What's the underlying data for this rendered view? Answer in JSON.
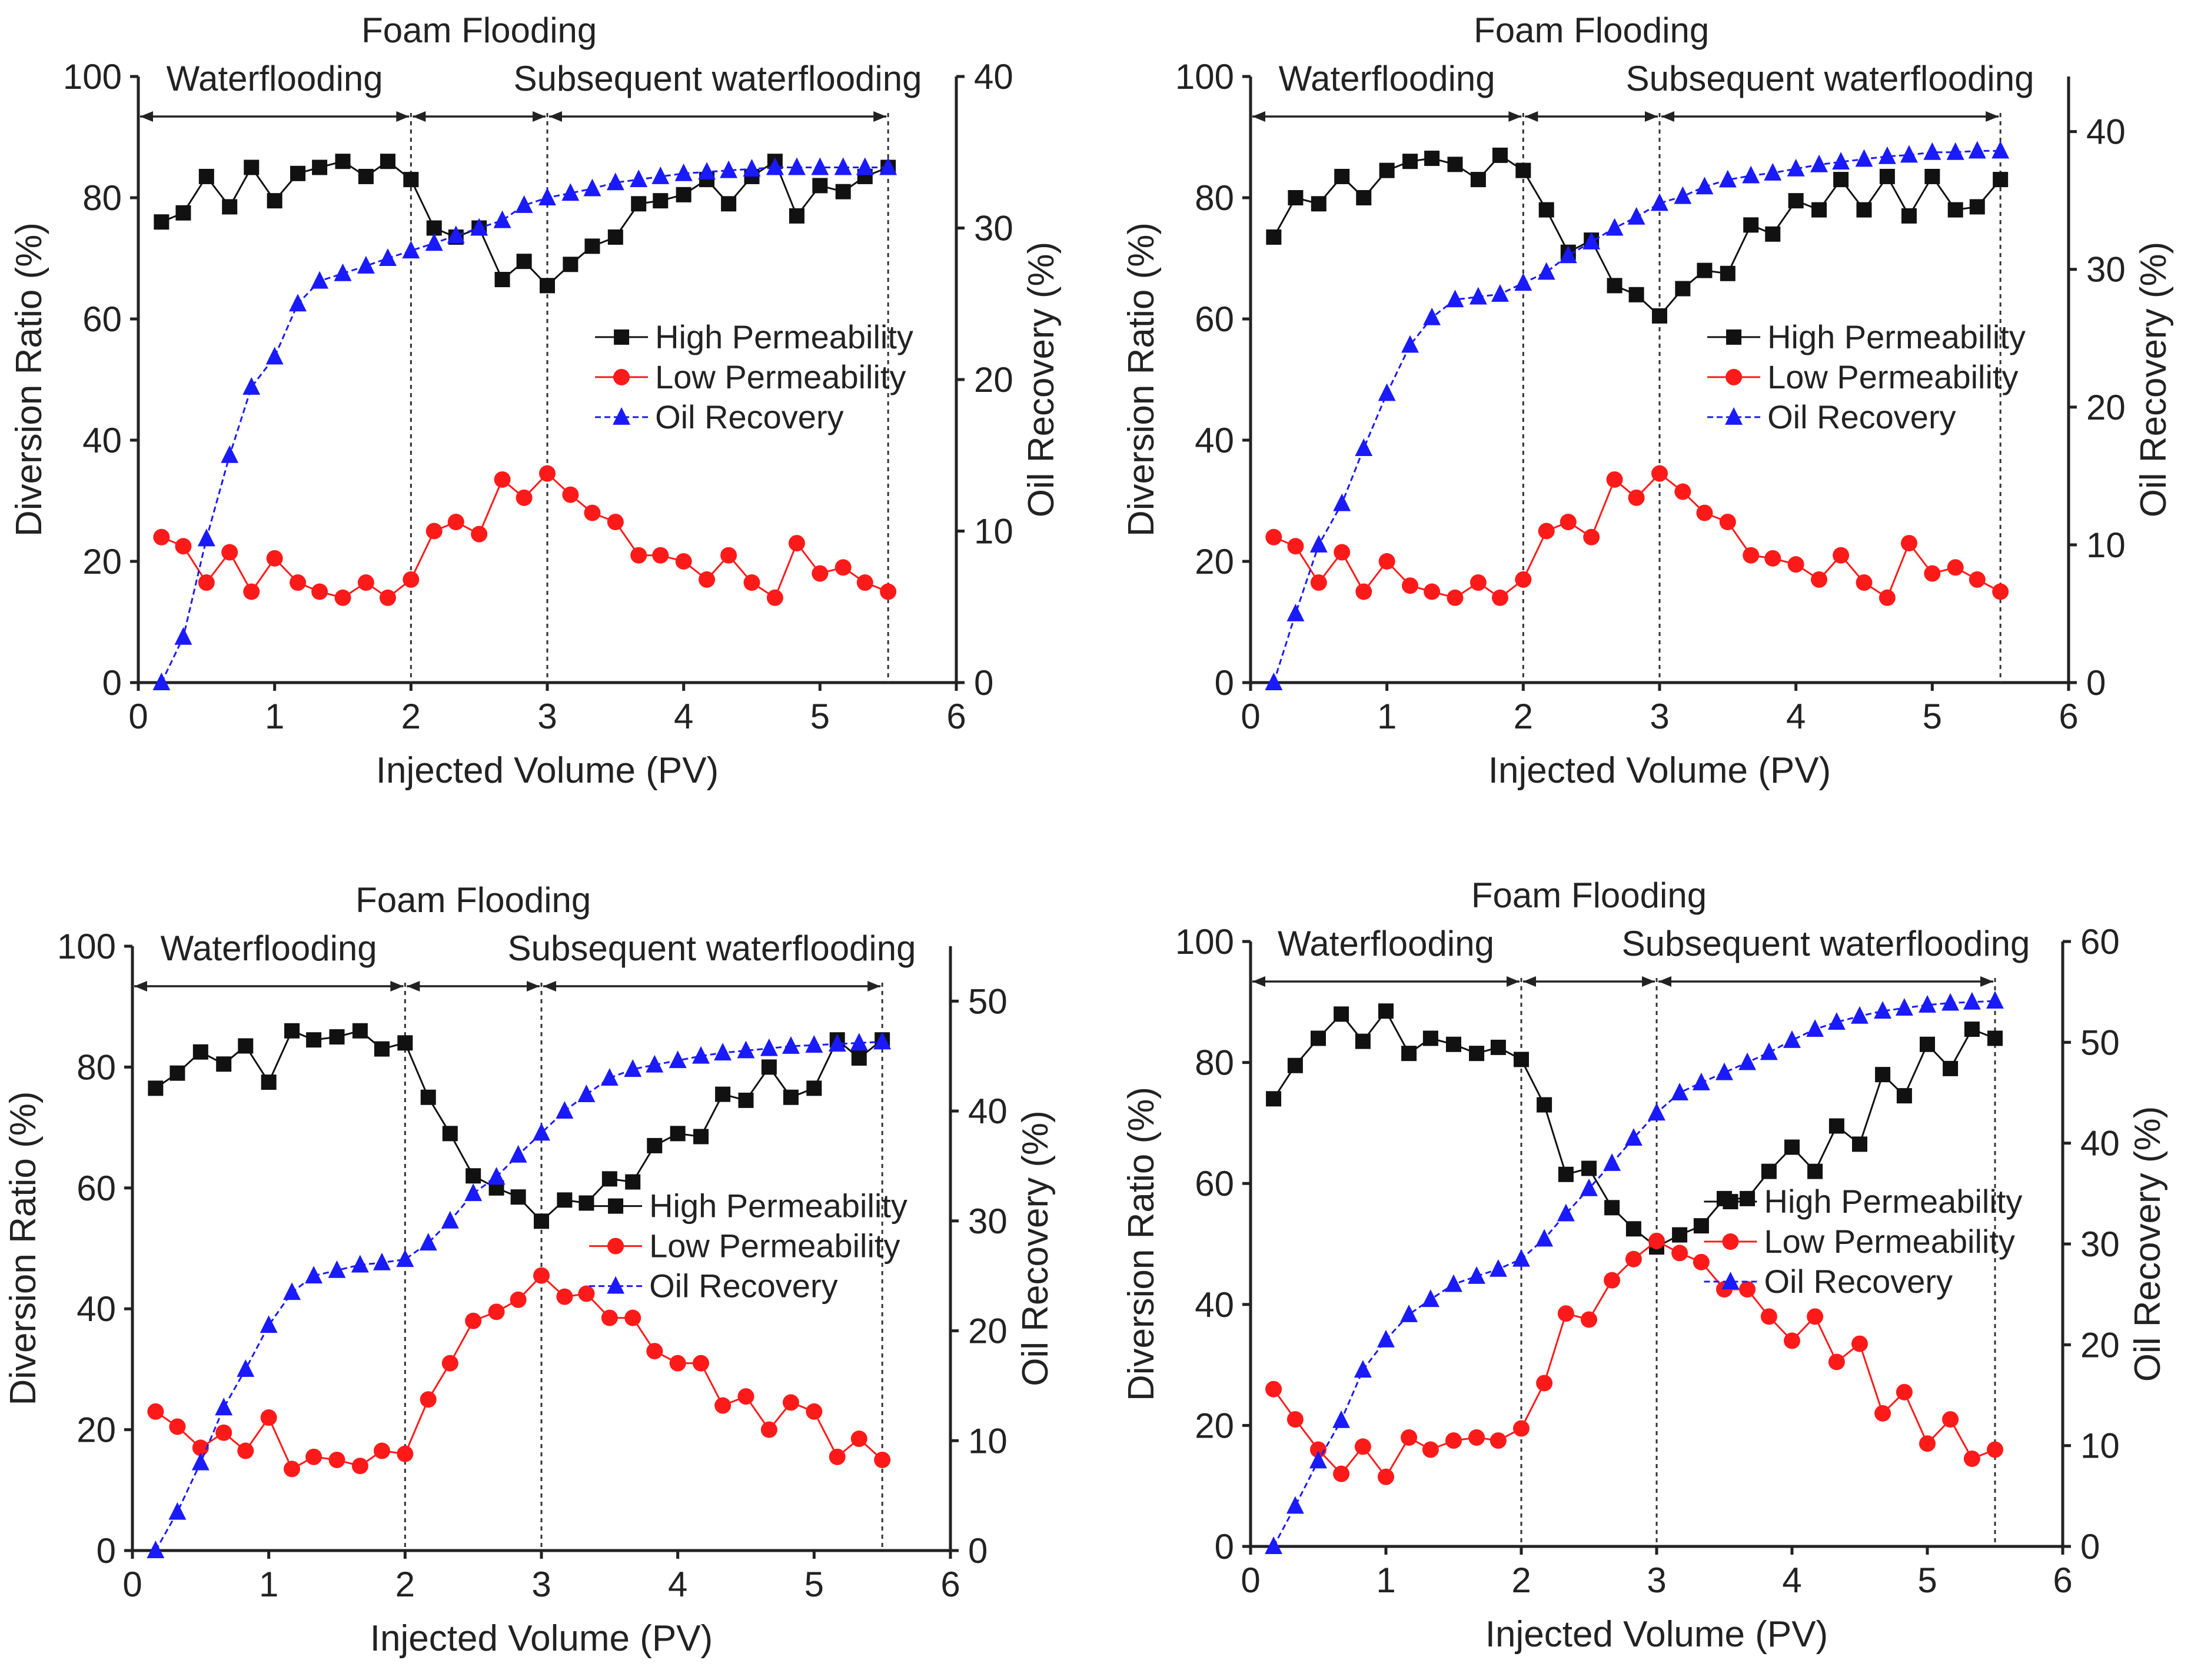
{
  "colors": {
    "high": "#111111",
    "low": "#ff1a1a",
    "oil": "#1a1aff",
    "axis": "#222222"
  },
  "markers": {
    "high": "square",
    "low": "circle",
    "oil": "triangle"
  },
  "chart_data": [
    {
      "type": "line",
      "panel": "top-left",
      "labels": {
        "phase_center": "Foam Flooding",
        "phase_left": "Waterflooding",
        "phase_right": "Subsequent waterflooding",
        "xlabel": "Injected Volume (PV)",
        "ylabel_left": "Diversion Ratio (%)",
        "ylabel_right": "Oil Recovery (%)"
      },
      "xlim": [
        0,
        6
      ],
      "xticks": [
        0,
        1,
        2,
        3,
        4,
        5,
        6
      ],
      "ylim_left": [
        0,
        100
      ],
      "yticks_left": [
        0,
        20,
        40,
        60,
        80,
        100
      ],
      "ylim_right": [
        0,
        40
      ],
      "yticks_right": [
        0,
        10,
        20,
        30,
        40
      ],
      "phase_boundaries": [
        2,
        3,
        5.5
      ],
      "legend": [
        "High Permeability",
        "Low Permeability",
        "Oil Recovery"
      ],
      "legend_position": "center-right",
      "series": [
        {
          "name": "High Permeability",
          "axis": "left",
          "x": [
            0.17,
            0.33,
            0.5,
            0.67,
            0.83,
            1.0,
            1.17,
            1.33,
            1.5,
            1.67,
            1.83,
            2.0,
            2.17,
            2.33,
            2.5,
            2.67,
            2.83,
            3.0,
            3.17,
            3.33,
            3.5,
            3.67,
            3.83,
            4.0,
            4.17,
            4.33,
            4.5,
            4.67,
            4.83,
            5.0,
            5.17,
            5.33,
            5.5
          ],
          "y": [
            76,
            77.5,
            83.5,
            78.5,
            85,
            79.5,
            84,
            85,
            86,
            83.5,
            86,
            83,
            75,
            73.5,
            75,
            66.5,
            69.5,
            65.5,
            69,
            72,
            73.5,
            79,
            79.5,
            80.5,
            83,
            79,
            83.5,
            86,
            77,
            82,
            81,
            83.5,
            85
          ]
        },
        {
          "name": "Low Permeability",
          "axis": "left",
          "x": [
            0.17,
            0.33,
            0.5,
            0.67,
            0.83,
            1.0,
            1.17,
            1.33,
            1.5,
            1.67,
            1.83,
            2.0,
            2.17,
            2.33,
            2.5,
            2.67,
            2.83,
            3.0,
            3.17,
            3.33,
            3.5,
            3.67,
            3.83,
            4.0,
            4.17,
            4.33,
            4.5,
            4.67,
            4.83,
            5.0,
            5.17,
            5.33,
            5.5
          ],
          "y": [
            24,
            22.5,
            16.5,
            21.5,
            15,
            20.5,
            16.5,
            15,
            14,
            16.5,
            14,
            17,
            25,
            26.5,
            24.5,
            33.5,
            30.5,
            34.5,
            31,
            28,
            26.5,
            21,
            21,
            20,
            17,
            21,
            16.5,
            14,
            23,
            18,
            19,
            16.5,
            15
          ]
        },
        {
          "name": "Oil Recovery",
          "axis": "right",
          "x": [
            0.17,
            0.33,
            0.5,
            0.67,
            0.83,
            1.0,
            1.17,
            1.33,
            1.5,
            1.67,
            1.83,
            2.0,
            2.17,
            2.33,
            2.5,
            2.67,
            2.83,
            3.0,
            3.17,
            3.33,
            3.5,
            3.67,
            3.83,
            4.0,
            4.17,
            4.33,
            4.5,
            4.67,
            4.83,
            5.0,
            5.17,
            5.33,
            5.5
          ],
          "y": [
            0,
            3,
            9.5,
            15,
            19.5,
            21.5,
            25,
            26.5,
            27,
            27.5,
            28,
            28.5,
            29,
            29.5,
            30,
            30.5,
            31.5,
            32,
            32.3,
            32.6,
            33,
            33.2,
            33.4,
            33.6,
            33.7,
            33.8,
            33.9,
            34,
            34,
            34,
            34,
            34,
            34
          ]
        }
      ]
    },
    {
      "type": "line",
      "panel": "top-right",
      "labels": {
        "phase_center": "Foam Flooding",
        "phase_left": "Waterflooding",
        "phase_right": "Subsequent waterflooding",
        "xlabel": "Injected Volume (PV)",
        "ylabel_left": "Diversion Ratio (%)",
        "ylabel_right": "Oil Recovery (%)"
      },
      "xlim": [
        0,
        6
      ],
      "xticks": [
        0,
        1,
        2,
        3,
        4,
        5,
        6
      ],
      "ylim_left": [
        0,
        100
      ],
      "yticks_left": [
        0,
        20,
        40,
        60,
        80,
        100
      ],
      "ylim_right": [
        0,
        44
      ],
      "yticks_right": [
        0,
        10,
        20,
        30,
        40
      ],
      "phase_boundaries": [
        2,
        3,
        5.5
      ],
      "legend": [
        "High Permeability",
        "Low Permeability",
        "Oil Recovery"
      ],
      "legend_position": "center-right",
      "series": [
        {
          "name": "High Permeability",
          "axis": "left",
          "x": [
            0.17,
            0.33,
            0.5,
            0.67,
            0.83,
            1.0,
            1.17,
            1.33,
            1.5,
            1.67,
            1.83,
            2.0,
            2.17,
            2.33,
            2.5,
            2.67,
            2.83,
            3.0,
            3.17,
            3.33,
            3.5,
            3.67,
            3.83,
            4.0,
            4.17,
            4.33,
            4.5,
            4.67,
            4.83,
            5.0,
            5.17,
            5.33,
            5.5
          ],
          "y": [
            73.5,
            80,
            79,
            83.5,
            80,
            84.5,
            86,
            86.5,
            85.5,
            83,
            87,
            84.5,
            78,
            71,
            73,
            65.5,
            64,
            60.5,
            65,
            68,
            67.5,
            75.5,
            74,
            79.5,
            78,
            83,
            78,
            83.5,
            77,
            83.5,
            78,
            78.5,
            83
          ]
        },
        {
          "name": "Low Permeability",
          "axis": "left",
          "x": [
            0.17,
            0.33,
            0.5,
            0.67,
            0.83,
            1.0,
            1.17,
            1.33,
            1.5,
            1.67,
            1.83,
            2.0,
            2.17,
            2.33,
            2.5,
            2.67,
            2.83,
            3.0,
            3.17,
            3.33,
            3.5,
            3.67,
            3.83,
            4.0,
            4.17,
            4.33,
            4.5,
            4.67,
            4.83,
            5.0,
            5.17,
            5.33,
            5.5
          ],
          "y": [
            24,
            22.5,
            16.5,
            21.5,
            15,
            20,
            16,
            15,
            14,
            16.5,
            14,
            17,
            25,
            26.5,
            24,
            33.5,
            30.5,
            34.5,
            31.5,
            28,
            26.5,
            21,
            20.5,
            19.5,
            17,
            21,
            16.5,
            14,
            23,
            18,
            19,
            17,
            15
          ]
        },
        {
          "name": "Oil Recovery",
          "axis": "right",
          "x": [
            0.17,
            0.33,
            0.5,
            0.67,
            0.83,
            1.0,
            1.17,
            1.33,
            1.5,
            1.67,
            1.83,
            2.0,
            2.17,
            2.33,
            2.5,
            2.67,
            2.83,
            3.0,
            3.17,
            3.33,
            3.5,
            3.67,
            3.83,
            4.0,
            4.17,
            4.33,
            4.5,
            4.67,
            4.83,
            5.0,
            5.17,
            5.33,
            5.5
          ],
          "y": [
            0,
            5,
            10,
            13,
            17,
            21,
            24.5,
            26.5,
            27.8,
            28,
            28.2,
            29,
            29.8,
            31,
            32,
            33,
            33.8,
            34.8,
            35.3,
            36,
            36.5,
            36.8,
            37,
            37.3,
            37.6,
            37.8,
            38,
            38.2,
            38.3,
            38.5,
            38.5,
            38.6,
            38.6
          ]
        }
      ]
    },
    {
      "type": "line",
      "panel": "bottom-left",
      "labels": {
        "phase_center": "Foam Flooding",
        "phase_left": "Waterflooding",
        "phase_right": "Subsequent waterflooding",
        "xlabel": "Injected Volume (PV)",
        "ylabel_left": "Diversion Ratio (%)",
        "ylabel_right": "Oil Recovery (%)"
      },
      "xlim": [
        0,
        6
      ],
      "xticks": [
        0,
        1,
        2,
        3,
        4,
        5,
        6
      ],
      "ylim_left": [
        0,
        100
      ],
      "yticks_left": [
        0,
        20,
        40,
        60,
        80,
        100
      ],
      "ylim_right": [
        0,
        55
      ],
      "yticks_right": [
        0,
        10,
        20,
        30,
        40,
        50
      ],
      "phase_boundaries": [
        2,
        3,
        5.5
      ],
      "legend": [
        "High Permeability",
        "Low Permeability",
        "Oil Recovery"
      ],
      "legend_position": "center-right",
      "series": [
        {
          "name": "High Permeability",
          "axis": "left",
          "x": [
            0.17,
            0.33,
            0.5,
            0.67,
            0.83,
            1.0,
            1.17,
            1.33,
            1.5,
            1.67,
            1.83,
            2.0,
            2.17,
            2.33,
            2.5,
            2.67,
            2.83,
            3.0,
            3.17,
            3.33,
            3.5,
            3.67,
            3.83,
            4.0,
            4.17,
            4.33,
            4.5,
            4.67,
            4.83,
            5.0,
            5.17,
            5.33,
            5.5
          ],
          "y": [
            76.5,
            79,
            82.5,
            80.5,
            83.5,
            77.5,
            86,
            84.5,
            85,
            86,
            83,
            84,
            75,
            69,
            62,
            60,
            58.5,
            54.5,
            58,
            57.5,
            61.5,
            61,
            67,
            69,
            68.5,
            75.5,
            74.5,
            80,
            75,
            76.5,
            84.5,
            81.5,
            84.5
          ]
        },
        {
          "name": "Low Permeability",
          "axis": "left",
          "x": [
            0.17,
            0.33,
            0.5,
            0.67,
            0.83,
            1.0,
            1.17,
            1.33,
            1.5,
            1.67,
            1.83,
            2.0,
            2.17,
            2.33,
            2.5,
            2.67,
            2.83,
            3.0,
            3.17,
            3.33,
            3.5,
            3.67,
            3.83,
            4.0,
            4.17,
            4.33,
            4.5,
            4.67,
            4.83,
            5.0,
            5.17,
            5.33,
            5.5
          ],
          "y": [
            23,
            20.5,
            17,
            19.5,
            16.5,
            22,
            13.5,
            15.5,
            15,
            14,
            16.5,
            16,
            25,
            31,
            38,
            39.5,
            41.5,
            45.5,
            42,
            42.5,
            38.5,
            38.5,
            33,
            31,
            31,
            24,
            25.5,
            20,
            24.5,
            23,
            15.5,
            18.5,
            15
          ]
        },
        {
          "name": "Oil Recovery",
          "axis": "right",
          "x": [
            0.17,
            0.33,
            0.5,
            0.67,
            0.83,
            1.0,
            1.17,
            1.33,
            1.5,
            1.67,
            1.83,
            2.0,
            2.17,
            2.33,
            2.5,
            2.67,
            2.83,
            3.0,
            3.17,
            3.33,
            3.5,
            3.67,
            3.83,
            4.0,
            4.17,
            4.33,
            4.5,
            4.67,
            4.83,
            5.0,
            5.17,
            5.33,
            5.5
          ],
          "y": [
            0,
            3.5,
            8,
            13,
            16.5,
            20.5,
            23.5,
            25,
            25.5,
            26,
            26.2,
            26.5,
            28,
            30,
            32.5,
            34,
            36,
            38,
            40,
            41.5,
            43,
            43.8,
            44.2,
            44.6,
            45,
            45.3,
            45.5,
            45.7,
            45.9,
            46,
            46.1,
            46.2,
            46.3
          ]
        }
      ]
    },
    {
      "type": "line",
      "panel": "bottom-right",
      "labels": {
        "phase_center": "Foam Flooding",
        "phase_left": "Waterflooding",
        "phase_right": "Subsequent waterflooding",
        "xlabel": "Injected Volume (PV)",
        "ylabel_left": "Diversion Ratio (%)",
        "ylabel_right": "Oil Recovery (%)"
      },
      "xlim": [
        0,
        6
      ],
      "xticks": [
        0,
        1,
        2,
        3,
        4,
        5,
        6
      ],
      "ylim_left": [
        0,
        100
      ],
      "yticks_left": [
        0,
        20,
        40,
        60,
        80,
        100
      ],
      "ylim_right": [
        0,
        60
      ],
      "yticks_right": [
        0,
        10,
        20,
        30,
        40,
        50,
        60
      ],
      "phase_boundaries": [
        2,
        3,
        5.5
      ],
      "legend": [
        "High Permeability",
        "Low Permeability",
        "Oil Recovery"
      ],
      "legend_position": "center-right",
      "series": [
        {
          "name": "High Permeability",
          "axis": "left",
          "x": [
            0.17,
            0.33,
            0.5,
            0.67,
            0.83,
            1.0,
            1.17,
            1.33,
            1.5,
            1.67,
            1.83,
            2.0,
            2.17,
            2.33,
            2.5,
            2.67,
            2.83,
            3.0,
            3.17,
            3.33,
            3.5,
            3.67,
            3.83,
            4.0,
            4.17,
            4.33,
            4.5,
            4.67,
            4.83,
            5.0,
            5.17,
            5.33,
            5.5
          ],
          "y": [
            74,
            79.5,
            84,
            88,
            83.5,
            88.5,
            81.5,
            84,
            83,
            81.5,
            82.5,
            80.5,
            73,
            61.5,
            62.5,
            56,
            52.5,
            49.5,
            51.5,
            53,
            57.5,
            57.5,
            62,
            66,
            62,
            69.5,
            66.5,
            78,
            74.5,
            83,
            79,
            85.5,
            84
          ]
        },
        {
          "name": "Low Permeability",
          "axis": "left",
          "x": [
            0.17,
            0.33,
            0.5,
            0.67,
            0.83,
            1.0,
            1.17,
            1.33,
            1.5,
            1.67,
            1.83,
            2.0,
            2.17,
            2.33,
            2.5,
            2.67,
            2.83,
            3.0,
            3.17,
            3.33,
            3.5,
            3.67,
            3.83,
            4.0,
            4.17,
            4.33,
            4.5,
            4.67,
            4.83,
            5.0,
            5.17,
            5.33,
            5.5
          ],
          "y": [
            26,
            21,
            16,
            12,
            16.5,
            11.5,
            18,
            16,
            17.5,
            18,
            17.5,
            19.5,
            27,
            38.5,
            37.5,
            44,
            47.5,
            50.5,
            48.5,
            47,
            42.5,
            42.5,
            38,
            34,
            38,
            30.5,
            33.5,
            22,
            25.5,
            17,
            21,
            14.5,
            16
          ]
        },
        {
          "name": "Oil Recovery",
          "axis": "right",
          "x": [
            0.17,
            0.33,
            0.5,
            0.67,
            0.83,
            1.0,
            1.17,
            1.33,
            1.5,
            1.67,
            1.83,
            2.0,
            2.17,
            2.33,
            2.5,
            2.67,
            2.83,
            3.0,
            3.17,
            3.33,
            3.5,
            3.67,
            3.83,
            4.0,
            4.17,
            4.33,
            4.5,
            4.67,
            4.83,
            5.0,
            5.17,
            5.33,
            5.5
          ],
          "y": [
            0,
            4,
            8.5,
            12.5,
            17.5,
            20.5,
            23,
            24.5,
            26,
            26.8,
            27.5,
            28.5,
            30.5,
            33,
            35.5,
            38,
            40.5,
            43,
            45,
            46,
            47,
            48,
            49,
            50.2,
            51.3,
            52,
            52.6,
            53.1,
            53.4,
            53.7,
            53.9,
            54,
            54.1
          ]
        }
      ]
    }
  ]
}
